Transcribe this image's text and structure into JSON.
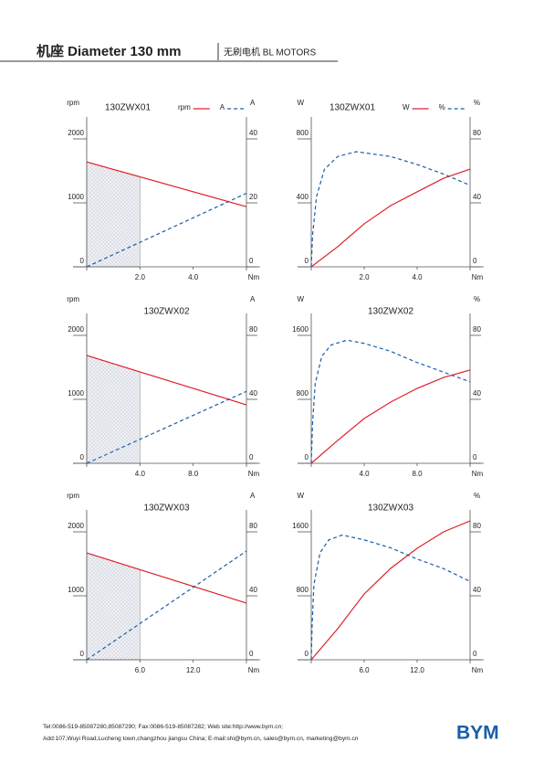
{
  "header": {
    "title": "机座 Diameter 130 mm",
    "subtitle": "无刷电机 BL MOTORS"
  },
  "footer": {
    "line1": "Tel:0086-519-85087280,85087290;      Fax:0086-519-85087282;      Web site:http://www.bym.cn;",
    "line2": "Add:107,Wuyi Road,Lucheng town,changzhou jiangsu China;  E-mail:shi@bym.cn, sales@bym.cn, marketing@bym.cn",
    "logo": "BYM"
  },
  "chart_data": [
    {
      "type": "line",
      "title": "130ZWX01",
      "legend": true,
      "xlabel": "Nm",
      "ylabel": "rpm",
      "y2label": "A",
      "xlim": [
        0,
        6
      ],
      "xticks": [
        {
          "value": 2,
          "label": "2.0"
        },
        {
          "value": 4,
          "label": "4.0"
        }
      ],
      "ylim": [
        0,
        2200
      ],
      "yticks": [
        0,
        1000,
        2000
      ],
      "y2lim": [
        0,
        44
      ],
      "y2ticks": [
        0,
        20,
        40
      ],
      "shaded_x": [
        0,
        2
      ],
      "series": [
        {
          "name": "rpm",
          "color": "#e0202a",
          "dash": false,
          "x": [
            0,
            6
          ],
          "values": [
            1640,
            940
          ]
        },
        {
          "name": "A",
          "color": "#1a5ea8",
          "dash": true,
          "axis": "y2",
          "x": [
            0,
            6
          ],
          "values": [
            0,
            23
          ]
        }
      ]
    },
    {
      "type": "line",
      "title": "130ZWX01",
      "legend": true,
      "xlabel": "Nm",
      "ylabel": "W",
      "y2label": "%",
      "xlim": [
        0,
        6
      ],
      "xticks": [
        {
          "value": 2,
          "label": "2.0"
        },
        {
          "value": 4,
          "label": "4.0"
        }
      ],
      "ylim": [
        0,
        880
      ],
      "yticks": [
        0,
        400,
        800
      ],
      "y2lim": [
        0,
        88
      ],
      "y2ticks": [
        0,
        40,
        80
      ],
      "series": [
        {
          "name": "W",
          "color": "#e0202a",
          "dash": false,
          "x": [
            0,
            1,
            2,
            3,
            4,
            5,
            6
          ],
          "values": [
            0,
            126,
            269,
            383,
            469,
            554,
            611
          ]
        },
        {
          "name": "%",
          "color": "#1a5ea8",
          "dash": true,
          "axis": "y2",
          "x": [
            0,
            0.05,
            0.2,
            0.5,
            1,
            1.7,
            3,
            4,
            5,
            6
          ],
          "values": [
            0,
            20,
            44,
            61,
            69,
            72,
            69,
            64,
            58,
            51
          ]
        }
      ]
    },
    {
      "type": "line",
      "title": "130ZWX02",
      "xlabel": "Nm",
      "ylabel": "rpm",
      "y2label": "A",
      "xlim": [
        0,
        12
      ],
      "xticks": [
        {
          "value": 4,
          "label": "4.0"
        },
        {
          "value": 8,
          "label": "8.0"
        }
      ],
      "ylim": [
        0,
        2200
      ],
      "yticks": [
        0,
        1000,
        2000
      ],
      "y2lim": [
        0,
        88
      ],
      "y2ticks": [
        0,
        40,
        80
      ],
      "shaded_x": [
        0,
        4
      ],
      "series": [
        {
          "color": "#e0202a",
          "dash": false,
          "x": [
            0,
            12
          ],
          "values": [
            1686,
            914
          ]
        },
        {
          "color": "#1a5ea8",
          "dash": true,
          "axis": "y2",
          "x": [
            0,
            12
          ],
          "values": [
            0,
            45
          ]
        }
      ]
    },
    {
      "type": "line",
      "title": "130ZWX02",
      "xlabel": "Nm",
      "ylabel": "W",
      "y2label": "%",
      "xlim": [
        0,
        12
      ],
      "xticks": [
        {
          "value": 4,
          "label": "4.0"
        },
        {
          "value": 8,
          "label": "8.0"
        }
      ],
      "ylim": [
        0,
        1760
      ],
      "yticks": [
        0,
        800,
        1600
      ],
      "y2lim": [
        0,
        88
      ],
      "y2ticks": [
        0,
        40,
        80
      ],
      "series": [
        {
          "color": "#e0202a",
          "dash": false,
          "x": [
            0,
            2,
            4,
            6,
            8,
            10,
            12
          ],
          "values": [
            0,
            286,
            560,
            766,
            937,
            1074,
            1166
          ]
        },
        {
          "color": "#1a5ea8",
          "dash": true,
          "axis": "y2",
          "x": [
            0,
            0.1,
            0.3,
            0.8,
            1.5,
            2.7,
            4,
            6,
            8,
            10,
            12
          ],
          "values": [
            0,
            25,
            50,
            67,
            74,
            77,
            75,
            70,
            63,
            57,
            51
          ]
        }
      ]
    },
    {
      "type": "line",
      "title": "130ZWX03",
      "xlabel": "Nm",
      "ylabel": "rpm",
      "y2label": "A",
      "xlim": [
        0,
        18
      ],
      "xticks": [
        {
          "value": 6,
          "label": "6.0"
        },
        {
          "value": 12,
          "label": "12.0"
        }
      ],
      "ylim": [
        0,
        2200
      ],
      "yticks": [
        0,
        1000,
        2000
      ],
      "y2lim": [
        0,
        88
      ],
      "y2ticks": [
        0,
        40,
        80
      ],
      "shaded_x": [
        0,
        6
      ],
      "series": [
        {
          "color": "#e0202a",
          "dash": false,
          "x": [
            0,
            18
          ],
          "values": [
            1671,
            886
          ]
        },
        {
          "color": "#1a5ea8",
          "dash": true,
          "axis": "y2",
          "x": [
            0,
            18
          ],
          "values": [
            0,
            68
          ]
        }
      ]
    },
    {
      "type": "line",
      "title": "130ZWX03",
      "xlabel": "Nm",
      "ylabel": "W",
      "y2label": "%",
      "xlim": [
        0,
        18
      ],
      "xticks": [
        {
          "value": 6,
          "label": "6.0"
        },
        {
          "value": 12,
          "label": "12.0"
        }
      ],
      "ylim": [
        0,
        1760
      ],
      "yticks": [
        0,
        800,
        1600
      ],
      "y2lim": [
        0,
        88
      ],
      "y2ticks": [
        0,
        40,
        80
      ],
      "series": [
        {
          "color": "#e0202a",
          "dash": false,
          "x": [
            0,
            3,
            6,
            9,
            12,
            15,
            18
          ],
          "values": [
            0,
            389,
            823,
            1143,
            1394,
            1600,
            1737
          ]
        },
        {
          "color": "#1a5ea8",
          "dash": true,
          "axis": "y2",
          "x": [
            0,
            0.1,
            0.3,
            1,
            2,
            3.5,
            6,
            9,
            12,
            15,
            18
          ],
          "values": [
            0,
            22,
            47,
            67,
            75,
            78,
            75,
            70,
            63,
            57,
            49
          ]
        }
      ]
    }
  ]
}
